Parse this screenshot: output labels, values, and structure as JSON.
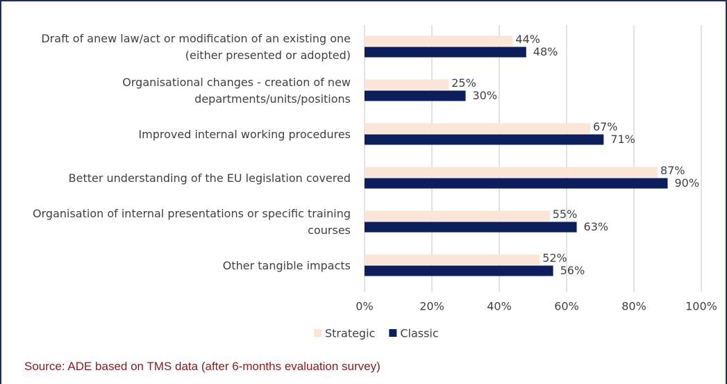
{
  "chart_data": {
    "type": "hbar",
    "categories": [
      "Draft of anew law/act or modification of an existing one (either presented or adopted)",
      "Organisational changes - creation of new departments/units/positions",
      "Improved internal working procedures",
      "Better understanding of the EU legislation covered",
      "Organisation of internal presentations or specific training courses",
      "Other tangible impacts"
    ],
    "series": [
      {
        "name": "Strategic",
        "color": "#fbe5d6",
        "values": [
          44,
          25,
          67,
          87,
          55,
          52
        ],
        "value_labels": [
          "44%",
          "25%",
          "67%",
          "87%",
          "55%",
          "52%"
        ]
      },
      {
        "name": "Classic",
        "color": "#0c1e5b",
        "values": [
          48,
          30,
          71,
          90,
          63,
          56
        ],
        "value_labels": [
          "48%",
          "30%",
          "71%",
          "90%",
          "63%",
          "56%"
        ]
      }
    ],
    "xlim": [
      0,
      100
    ],
    "xticks": [
      {
        "value": 0,
        "label": "0%"
      },
      {
        "value": 20,
        "label": "20%"
      },
      {
        "value": 40,
        "label": "40%"
      },
      {
        "value": 60,
        "label": "60%"
      },
      {
        "value": 80,
        "label": "80%"
      },
      {
        "value": 100,
        "label": "100%"
      }
    ],
    "grid": true,
    "legend": "bottom",
    "source": "Source: ADE based on TMS data  (after 6-months evaluation survey)"
  }
}
